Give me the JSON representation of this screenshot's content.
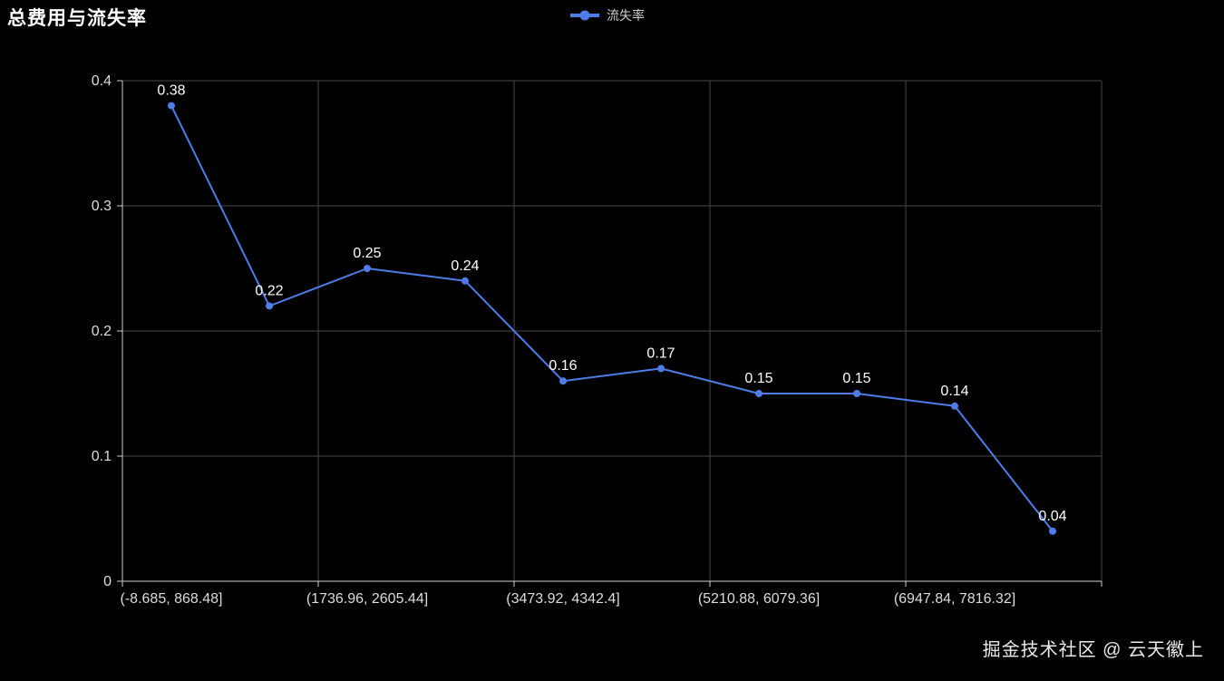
{
  "title": "总费用与流失率",
  "legend": {
    "label": "流失率"
  },
  "watermark": "掘金技术社区 @ 云天徽上",
  "colors": {
    "background": "#000000",
    "series": "#4e7ce8",
    "axis": "#cfcfcf",
    "grid": "#474747",
    "text": "#dddddd",
    "point_label": "#ffffff"
  },
  "chart_data": {
    "type": "line",
    "title": "总费用与流失率",
    "legend_position": "top-center",
    "background": "black",
    "grid": true,
    "num_categories": 10,
    "series": [
      {
        "name": "流失率",
        "color": "#4e7ce8",
        "values": [
          0.38,
          0.22,
          0.25,
          0.24,
          0.16,
          0.17,
          0.15,
          0.15,
          0.14,
          0.04
        ],
        "point_labels": [
          "0.38",
          "0.22",
          "0.25",
          "0.24",
          "0.16",
          "0.17",
          "0.15",
          "0.15",
          "0.14",
          "0.04"
        ]
      }
    ],
    "x_tick_labels": [
      "(-8.685, 868.48]",
      "(1736.96, 2605.44]",
      "(3473.92, 4342.4]",
      "(5210.88, 6079.36]",
      "(6947.84, 7816.32]"
    ],
    "x_tick_label_positions": [
      0,
      2,
      4,
      6,
      8
    ],
    "xlabel": "",
    "ylabel": "",
    "ylim": [
      0,
      0.4
    ],
    "y_ticks": [
      0,
      0.1,
      0.2,
      0.3,
      0.4
    ],
    "y_tick_labels": [
      "0",
      "0.1",
      "0.2",
      "0.3",
      "0.4"
    ]
  }
}
